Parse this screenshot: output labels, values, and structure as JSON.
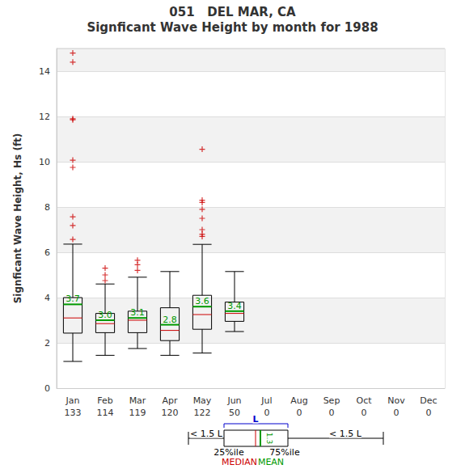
{
  "chart_data": {
    "type": "boxplot",
    "title": "051   DEL MAR, CA",
    "subtitle": "Signficant Wave Height by month for 1988",
    "y_label": "Signficant Wave Height, Hs (ft)",
    "categories": [
      "Jan",
      "Feb",
      "Mar",
      "Apr",
      "May",
      "Jun",
      "Jul",
      "Aug",
      "Sep",
      "Oct",
      "Nov",
      "Dec"
    ],
    "counts": [
      133,
      114,
      119,
      120,
      122,
      50,
      0,
      0,
      0,
      0,
      0,
      0
    ],
    "ylim": [
      0,
      15
    ],
    "yticks": [
      0,
      2,
      4,
      6,
      8,
      10,
      12,
      14
    ],
    "grid": true,
    "data_labels": true,
    "series": [
      {
        "type": "boxplot",
        "color": "#000000",
        "values": [
          [
            1.18,
            2.43,
            3.1,
            4.0,
            6.36
          ],
          [
            1.45,
            2.45,
            2.85,
            3.3,
            4.6
          ],
          [
            1.75,
            2.45,
            3.0,
            3.4,
            4.9
          ],
          [
            1.45,
            2.1,
            2.55,
            3.55,
            5.15
          ],
          [
            1.55,
            2.6,
            3.25,
            4.1,
            6.35
          ],
          [
            2.5,
            2.95,
            3.3,
            3.8,
            5.15
          ],
          null,
          null,
          null,
          null,
          null,
          null
        ]
      },
      {
        "type": "mean",
        "color": "#009900",
        "values": [
          3.7,
          3.0,
          3.1,
          2.8,
          3.6,
          3.4,
          null,
          null,
          null,
          null,
          null,
          null
        ],
        "value_labels": [
          "3.7",
          "3.0",
          "3.1",
          "2.8",
          "3.6",
          "3.4",
          null,
          null,
          null,
          null,
          null,
          null
        ]
      },
      {
        "type": "scatter",
        "marker": "+",
        "color": "#cc0000",
        "values": [
          [
            14.8,
            14.4,
            11.9,
            11.85,
            10.07,
            9.75,
            7.57,
            7.18,
            6.57
          ],
          [
            4.75,
            5.0,
            5.3
          ],
          [
            5.2,
            5.45,
            5.65
          ],
          [],
          [
            6.7,
            6.8,
            7.0,
            7.5,
            7.9,
            8.2,
            8.3,
            10.55
          ],
          [],
          [],
          [],
          [],
          [],
          [],
          []
        ]
      }
    ],
    "key": {
      "box": "L",
      "whisker": "< 1.5 L",
      "q1": "25%ile",
      "q3": "75%ile",
      "median": "MEDIAN",
      "mean": "MEAN",
      "mean_value": "1.3"
    }
  }
}
